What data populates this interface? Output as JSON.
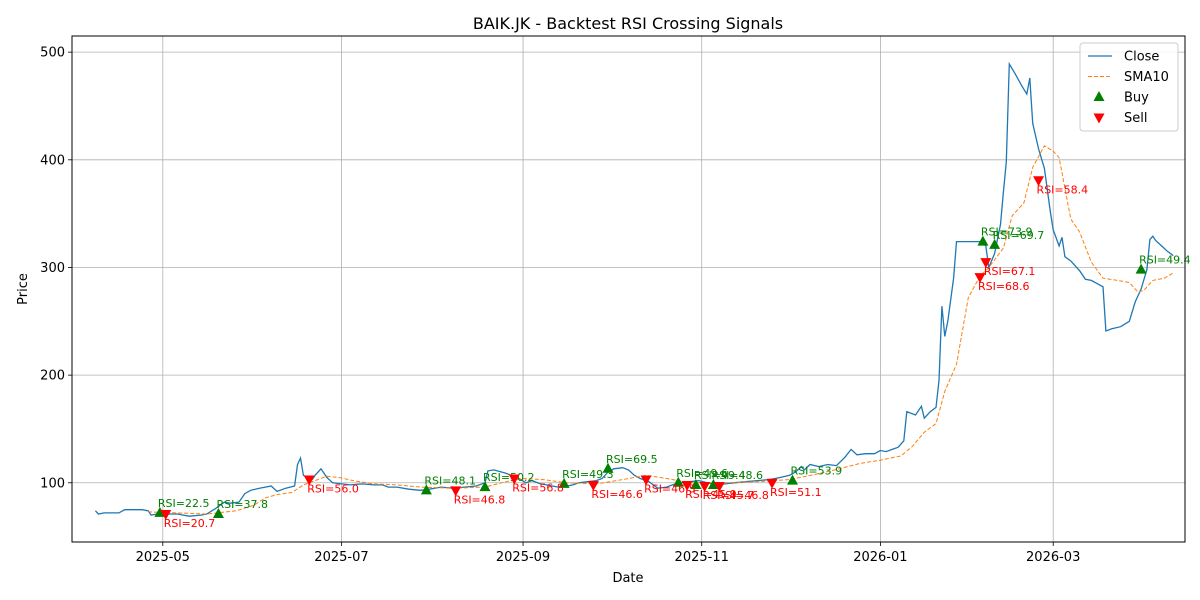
{
  "chart_data": {
    "type": "line",
    "title": "BAIK.JK - Backtest RSI Crossing Signals",
    "xlabel": "Date",
    "ylabel": "Price",
    "xlim": [
      "2025-03-31",
      "2026-04-15"
    ],
    "ylim": [
      45,
      515
    ],
    "grid": true,
    "legend_position": "top-right",
    "x_ticks": [
      "2025-05-01",
      "2025-07-01",
      "2025-09-01",
      "2025-11-01",
      "2026-01-01",
      "2026-03-01"
    ],
    "x_tick_labels": [
      "2025-05",
      "2025-07",
      "2025-09",
      "2025-11",
      "2026-01",
      "2026-03"
    ],
    "y_ticks": [
      100,
      200,
      300,
      400,
      500
    ],
    "y_tick_labels": [
      "100",
      "200",
      "300",
      "400",
      "500"
    ],
    "colors": {
      "close": "#1f77b4",
      "sma": "#ff7f0e",
      "buy": "#008000",
      "sell": "#ff0000",
      "grid": "#b0b0b0"
    },
    "legend": [
      {
        "label": "Close",
        "kind": "line"
      },
      {
        "label": "SMA10",
        "kind": "dashed"
      },
      {
        "label": "Buy",
        "kind": "buy"
      },
      {
        "label": "Sell",
        "kind": "sell"
      }
    ],
    "series": [
      {
        "name": "Close",
        "style": "solid",
        "points": [
          [
            "2025-04-08",
            74
          ],
          [
            "2025-04-09",
            71
          ],
          [
            "2025-04-11",
            72
          ],
          [
            "2025-04-14",
            72
          ],
          [
            "2025-04-16",
            72
          ],
          [
            "2025-04-18",
            75
          ],
          [
            "2025-04-21",
            75
          ],
          [
            "2025-04-24",
            75
          ],
          [
            "2025-04-26",
            74
          ],
          [
            "2025-04-27",
            70
          ],
          [
            "2025-04-29",
            71
          ],
          [
            "2025-05-02",
            71
          ],
          [
            "2025-05-06",
            71
          ],
          [
            "2025-05-08",
            70
          ],
          [
            "2025-05-10",
            69
          ],
          [
            "2025-05-14",
            70
          ],
          [
            "2025-05-16",
            71
          ],
          [
            "2025-05-19",
            76
          ],
          [
            "2025-05-21",
            80
          ],
          [
            "2025-05-22",
            82
          ],
          [
            "2025-05-24",
            81
          ],
          [
            "2025-05-27",
            82
          ],
          [
            "2025-05-29",
            90
          ],
          [
            "2025-05-31",
            93
          ],
          [
            "2025-06-03",
            95
          ],
          [
            "2025-06-07",
            97
          ],
          [
            "2025-06-09",
            92
          ],
          [
            "2025-06-12",
            95
          ],
          [
            "2025-06-15",
            97
          ],
          [
            "2025-06-16",
            117
          ],
          [
            "2025-06-17",
            123
          ],
          [
            "2025-06-18",
            107
          ],
          [
            "2025-06-21",
            103
          ],
          [
            "2025-06-22",
            107
          ],
          [
            "2025-06-24",
            113
          ],
          [
            "2025-06-26",
            105
          ],
          [
            "2025-06-28",
            100
          ],
          [
            "2025-07-01",
            99
          ],
          [
            "2025-07-04",
            98
          ],
          [
            "2025-07-08",
            99
          ],
          [
            "2025-07-12",
            98
          ],
          [
            "2025-07-15",
            98
          ],
          [
            "2025-07-17",
            96
          ],
          [
            "2025-07-20",
            96
          ],
          [
            "2025-07-24",
            94
          ],
          [
            "2025-07-28",
            93
          ],
          [
            "2025-07-31",
            94
          ],
          [
            "2025-08-04",
            96
          ],
          [
            "2025-08-08",
            95
          ],
          [
            "2025-08-12",
            96
          ],
          [
            "2025-08-16",
            97
          ],
          [
            "2025-08-19",
            100
          ],
          [
            "2025-08-20",
            111
          ],
          [
            "2025-08-22",
            112
          ],
          [
            "2025-08-26",
            109
          ],
          [
            "2025-08-28",
            107
          ],
          [
            "2025-08-30",
            105
          ],
          [
            "2025-09-02",
            100
          ],
          [
            "2025-09-04",
            102
          ],
          [
            "2025-09-07",
            99
          ],
          [
            "2025-09-09",
            98
          ],
          [
            "2025-09-11",
            97
          ],
          [
            "2025-09-13",
            96
          ],
          [
            "2025-09-16",
            97
          ],
          [
            "2025-09-18",
            98
          ],
          [
            "2025-09-20",
            100
          ],
          [
            "2025-09-23",
            101
          ],
          [
            "2025-09-26",
            102
          ],
          [
            "2025-09-28",
            104
          ],
          [
            "2025-09-30",
            110
          ],
          [
            "2025-10-02",
            113
          ],
          [
            "2025-10-05",
            114
          ],
          [
            "2025-10-07",
            112
          ],
          [
            "2025-10-09",
            107
          ],
          [
            "2025-10-11",
            104
          ],
          [
            "2025-10-14",
            101
          ],
          [
            "2025-10-17",
            95
          ],
          [
            "2025-10-20",
            96
          ],
          [
            "2025-10-22",
            98
          ],
          [
            "2025-10-25",
            100
          ],
          [
            "2025-10-28",
            101
          ],
          [
            "2025-10-31",
            102
          ],
          [
            "2025-11-03",
            100
          ],
          [
            "2025-11-06",
            98
          ],
          [
            "2025-11-09",
            99
          ],
          [
            "2025-11-12",
            100
          ],
          [
            "2025-11-16",
            101
          ],
          [
            "2025-11-20",
            102
          ],
          [
            "2025-11-24",
            103
          ],
          [
            "2025-11-28",
            105
          ],
          [
            "2025-12-01",
            107
          ],
          [
            "2025-12-03",
            110
          ],
          [
            "2025-12-05",
            115
          ],
          [
            "2025-12-06",
            112
          ],
          [
            "2025-12-08",
            117
          ],
          [
            "2025-12-11",
            115
          ],
          [
            "2025-12-14",
            117
          ],
          [
            "2025-12-17",
            116
          ],
          [
            "2025-12-20",
            124
          ],
          [
            "2025-12-22",
            131
          ],
          [
            "2025-12-24",
            126
          ],
          [
            "2025-12-27",
            127
          ],
          [
            "2025-12-30",
            127
          ],
          [
            "2026-01-01",
            130
          ],
          [
            "2026-01-03",
            129
          ],
          [
            "2026-01-05",
            131
          ],
          [
            "2026-01-07",
            133
          ],
          [
            "2026-01-09",
            139
          ],
          [
            "2026-01-10",
            166
          ],
          [
            "2026-01-13",
            163
          ],
          [
            "2026-01-15",
            171
          ],
          [
            "2026-01-16",
            160
          ],
          [
            "2026-01-18",
            166
          ],
          [
            "2026-01-20",
            170
          ],
          [
            "2026-01-21",
            195
          ],
          [
            "2026-01-22",
            264
          ],
          [
            "2026-01-23",
            236
          ],
          [
            "2026-01-24",
            250
          ],
          [
            "2026-01-26",
            290
          ],
          [
            "2026-01-27",
            324
          ],
          [
            "2026-01-30",
            324
          ],
          [
            "2026-02-02",
            324
          ],
          [
            "2026-02-04",
            324
          ],
          [
            "2026-02-06",
            320
          ],
          [
            "2026-02-07",
            300
          ],
          [
            "2026-02-09",
            313
          ],
          [
            "2026-02-11",
            340
          ],
          [
            "2026-02-12",
            370
          ],
          [
            "2026-02-13",
            398
          ],
          [
            "2026-02-14",
            489
          ],
          [
            "2026-02-16",
            480
          ],
          [
            "2026-02-18",
            470
          ],
          [
            "2026-02-20",
            461
          ],
          [
            "2026-02-21",
            476
          ],
          [
            "2026-02-22",
            434
          ],
          [
            "2026-02-24",
            410
          ],
          [
            "2026-02-26",
            392
          ],
          [
            "2026-02-28",
            352
          ],
          [
            "2026-03-01",
            335
          ],
          [
            "2026-03-03",
            320
          ],
          [
            "2026-03-04",
            328
          ],
          [
            "2026-03-05",
            310
          ],
          [
            "2026-03-07",
            306
          ],
          [
            "2026-03-10",
            297
          ],
          [
            "2026-03-12",
            289
          ],
          [
            "2026-03-14",
            288
          ],
          [
            "2026-03-16",
            285
          ],
          [
            "2026-03-18",
            282
          ],
          [
            "2026-03-19",
            241
          ],
          [
            "2026-03-21",
            243
          ],
          [
            "2026-03-24",
            245
          ],
          [
            "2026-03-27",
            250
          ],
          [
            "2026-03-29",
            268
          ],
          [
            "2026-03-31",
            280
          ],
          [
            "2026-04-02",
            298
          ],
          [
            "2026-04-03",
            326
          ],
          [
            "2026-04-04",
            329
          ],
          [
            "2026-04-05",
            325
          ],
          [
            "2026-04-07",
            320
          ],
          [
            "2026-04-09",
            315
          ],
          [
            "2026-04-11",
            311
          ]
        ]
      },
      {
        "name": "SMA10",
        "style": "dashed",
        "points": [
          [
            "2025-04-26",
            73
          ],
          [
            "2025-05-06",
            72
          ],
          [
            "2025-05-16",
            71
          ],
          [
            "2025-05-26",
            74
          ],
          [
            "2025-06-01",
            79
          ],
          [
            "2025-06-05",
            86
          ],
          [
            "2025-06-09",
            89
          ],
          [
            "2025-06-14",
            91
          ],
          [
            "2025-06-18",
            98
          ],
          [
            "2025-06-22",
            102
          ],
          [
            "2025-06-26",
            106
          ],
          [
            "2025-06-30",
            105
          ],
          [
            "2025-07-05",
            102
          ],
          [
            "2025-07-12",
            99
          ],
          [
            "2025-07-20",
            98
          ],
          [
            "2025-07-28",
            96
          ],
          [
            "2025-08-08",
            95
          ],
          [
            "2025-08-19",
            96
          ],
          [
            "2025-08-26",
            101
          ],
          [
            "2025-09-01",
            104
          ],
          [
            "2025-09-08",
            103
          ],
          [
            "2025-09-16",
            100
          ],
          [
            "2025-09-26",
            99
          ],
          [
            "2025-10-05",
            103
          ],
          [
            "2025-10-13",
            107
          ],
          [
            "2025-10-20",
            104
          ],
          [
            "2025-10-28",
            100
          ],
          [
            "2025-11-08",
            100
          ],
          [
            "2025-11-20",
            101
          ],
          [
            "2025-12-01",
            103
          ],
          [
            "2025-12-10",
            108
          ],
          [
            "2025-12-18",
            113
          ],
          [
            "2025-12-25",
            118
          ],
          [
            "2026-01-01",
            121
          ],
          [
            "2026-01-08",
            125
          ],
          [
            "2026-01-12",
            134
          ],
          [
            "2026-01-16",
            147
          ],
          [
            "2026-01-20",
            155
          ],
          [
            "2026-01-23",
            185
          ],
          [
            "2026-01-27",
            210
          ],
          [
            "2026-01-31",
            272
          ],
          [
            "2026-02-04",
            292
          ],
          [
            "2026-02-07",
            300
          ],
          [
            "2026-02-12",
            318
          ],
          [
            "2026-02-15",
            348
          ],
          [
            "2026-02-19",
            360
          ],
          [
            "2026-02-22",
            393
          ],
          [
            "2026-02-26",
            413
          ],
          [
            "2026-03-01",
            408
          ],
          [
            "2026-03-03",
            402
          ],
          [
            "2026-03-07",
            345
          ],
          [
            "2026-03-10",
            333
          ],
          [
            "2026-03-14",
            305
          ],
          [
            "2026-03-18",
            290
          ],
          [
            "2026-03-23",
            288
          ],
          [
            "2026-03-27",
            286
          ],
          [
            "2026-03-30",
            277
          ],
          [
            "2026-04-01",
            279
          ],
          [
            "2026-04-04",
            288
          ],
          [
            "2026-04-08",
            290
          ],
          [
            "2026-04-11",
            295
          ]
        ]
      }
    ],
    "buy_signals": [
      {
        "x": "2025-04-30",
        "y": 72,
        "label": "RSI=22.5"
      },
      {
        "x": "2025-05-20",
        "y": 71,
        "label": "RSI=37.8"
      },
      {
        "x": "2025-07-30",
        "y": 93,
        "label": "RSI=48.1"
      },
      {
        "x": "2025-08-19",
        "y": 96,
        "label": "RSI=50.2"
      },
      {
        "x": "2025-09-15",
        "y": 99,
        "label": "RSI=49.3"
      },
      {
        "x": "2025-09-30",
        "y": 113,
        "label": "RSI=69.5"
      },
      {
        "x": "2025-10-24",
        "y": 100,
        "label": "RSI=49.6"
      },
      {
        "x": "2025-10-30",
        "y": 98,
        "label": "RSI=49.4"
      },
      {
        "x": "2025-11-05",
        "y": 98,
        "label": "RSI=48.6"
      },
      {
        "x": "2025-12-02",
        "y": 102,
        "label": "RSI=53.9"
      },
      {
        "x": "2026-02-05",
        "y": 324,
        "label": "RSI=73.9"
      },
      {
        "x": "2026-02-09",
        "y": 321,
        "label": "RSI=69.7"
      },
      {
        "x": "2026-03-31",
        "y": 298,
        "label": "RSI=49.4"
      }
    ],
    "sell_signals": [
      {
        "x": "2025-05-02",
        "y": 71,
        "label": "RSI=20.7"
      },
      {
        "x": "2025-06-20",
        "y": 103,
        "label": "RSI=56.0"
      },
      {
        "x": "2025-08-09",
        "y": 93,
        "label": "RSI=46.8"
      },
      {
        "x": "2025-08-29",
        "y": 104,
        "label": "RSI=56.8"
      },
      {
        "x": "2025-09-25",
        "y": 98,
        "label": "RSI=46.6"
      },
      {
        "x": "2025-10-13",
        "y": 103,
        "label": "RSI=46.5"
      },
      {
        "x": "2025-10-27",
        "y": 98,
        "label": "RSI=45.9"
      },
      {
        "x": "2025-11-02",
        "y": 97,
        "label": "RSI=45.7"
      },
      {
        "x": "2025-11-07",
        "y": 97,
        "label": "RSI=46.8"
      },
      {
        "x": "2025-11-25",
        "y": 100,
        "label": "RSI=51.1"
      },
      {
        "x": "2026-02-04",
        "y": 291,
        "label": "RSI=68.6"
      },
      {
        "x": "2026-02-06",
        "y": 305,
        "label": "RSI=67.1"
      },
      {
        "x": "2026-02-24",
        "y": 381,
        "label": "RSI=58.4"
      }
    ]
  }
}
